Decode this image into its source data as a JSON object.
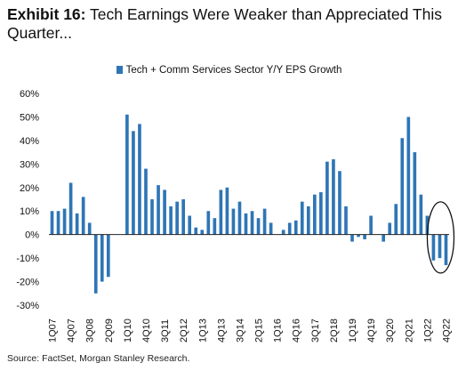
{
  "title_prefix": "Exhibit 16:",
  "title_text": "Tech Earnings Were Weaker than Appreciated This Quarter...",
  "source": "Source: FactSet, Morgan Stanley Research.",
  "colors": {
    "bar": "#2e75b6",
    "axis": "#222222",
    "highlight": "#111111"
  },
  "chart_data": {
    "type": "bar",
    "legend": [
      "Tech + Comm Services Sector Y/Y EPS Growth"
    ],
    "ylim": [
      -30,
      60
    ],
    "yticks": [
      -30,
      -20,
      -10,
      0,
      10,
      20,
      30,
      40,
      50,
      60
    ],
    "ytick_labels": [
      "-30%",
      "-20%",
      "-10%",
      "0%",
      "10%",
      "20%",
      "30%",
      "40%",
      "50%",
      "60%"
    ],
    "grid": false,
    "xtick_labels": [
      "1Q07",
      "4Q07",
      "3Q08",
      "2Q09",
      "1Q10",
      "4Q10",
      "3Q11",
      "2Q12",
      "1Q13",
      "4Q13",
      "3Q14",
      "2Q15",
      "1Q16",
      "4Q16",
      "3Q17",
      "2Q18",
      "1Q19",
      "4Q19",
      "3Q20",
      "2Q21",
      "1Q22",
      "4Q22"
    ],
    "categories": [
      "1Q07",
      "2Q07",
      "3Q07",
      "4Q07",
      "1Q08",
      "2Q08",
      "3Q08",
      "4Q08",
      "1Q09",
      "2Q09",
      "3Q09",
      "4Q09",
      "1Q10",
      "2Q10",
      "3Q10",
      "4Q10",
      "1Q11",
      "2Q11",
      "3Q11",
      "4Q11",
      "1Q12",
      "2Q12",
      "3Q12",
      "4Q12",
      "1Q13",
      "2Q13",
      "3Q13",
      "4Q13",
      "1Q14",
      "2Q14",
      "3Q14",
      "4Q14",
      "1Q15",
      "2Q15",
      "3Q15",
      "4Q15",
      "1Q16",
      "2Q16",
      "3Q16",
      "4Q16",
      "1Q17",
      "2Q17",
      "3Q17",
      "4Q17",
      "1Q18",
      "2Q18",
      "3Q18",
      "4Q18",
      "1Q19",
      "2Q19",
      "3Q19",
      "4Q19",
      "1Q20",
      "2Q20",
      "3Q20",
      "4Q20",
      "1Q21",
      "2Q21",
      "3Q21",
      "4Q21",
      "1Q22",
      "2Q22",
      "3Q22",
      "4Q22"
    ],
    "values": [
      10,
      10,
      11,
      22,
      9,
      16,
      5,
      -25,
      -20,
      -18,
      0,
      0,
      51,
      44,
      47,
      28,
      15,
      21,
      19,
      12,
      14,
      15,
      8,
      3,
      2,
      10,
      7,
      19,
      20,
      11,
      14,
      9,
      10,
      7,
      11,
      5,
      0,
      2,
      5,
      6,
      14,
      12,
      17,
      18,
      31,
      32,
      27,
      12,
      -3,
      -1,
      -2,
      8,
      0,
      -3,
      5,
      13,
      41,
      50,
      35,
      17,
      8,
      -11,
      -10,
      -13
    ],
    "annotation": "ellipse around latest three quarters"
  }
}
